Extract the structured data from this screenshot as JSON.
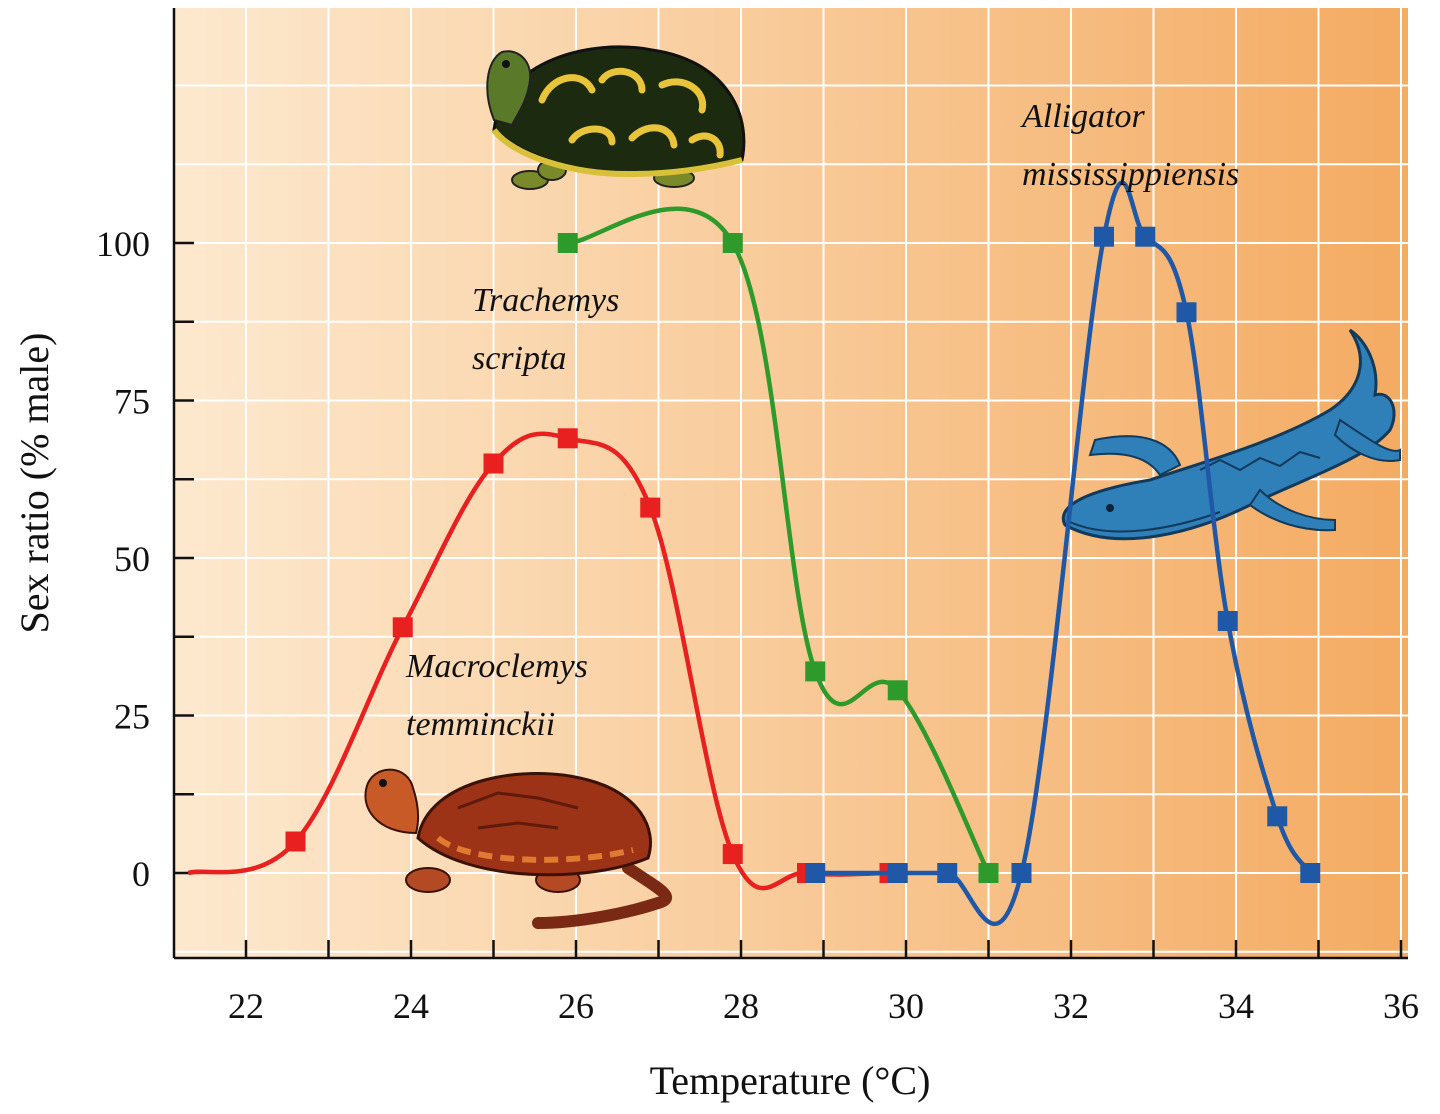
{
  "chart_data": {
    "type": "line",
    "xlabel": "Temperature (°C)",
    "ylabel": "Sex ratio (% male)",
    "xlim": [
      21,
      36
    ],
    "ylim": [
      -14,
      137
    ],
    "x_ticks": [
      22,
      24,
      26,
      28,
      30,
      32,
      34,
      36
    ],
    "y_ticks": [
      0,
      25,
      50,
      75,
      100
    ],
    "grid": true,
    "colors": {
      "background_left": "#fde9cf",
      "background_right": "#f4ab62",
      "grid": "#ffffff"
    },
    "series": [
      {
        "name": "Macroclemys temminckii",
        "label_lines": [
          "Macroclemys",
          "temminckii"
        ],
        "color": "#e8201f",
        "start_point": [
          21.3,
          0
        ],
        "points": [
          [
            22.6,
            5
          ],
          [
            23.9,
            39
          ],
          [
            25.0,
            65
          ],
          [
            25.9,
            69
          ],
          [
            26.9,
            58
          ],
          [
            27.9,
            3
          ],
          [
            28.8,
            0
          ],
          [
            29.8,
            0
          ]
        ],
        "icon": "snapping-turtle-icon"
      },
      {
        "name": "Trachemys scripta",
        "label_lines": [
          "Trachemys",
          "scripta"
        ],
        "color": "#2e9a2b",
        "points": [
          [
            25.9,
            100
          ],
          [
            27.9,
            100
          ],
          [
            28.9,
            32
          ],
          [
            29.9,
            29
          ],
          [
            31.0,
            0
          ]
        ],
        "icon": "slider-turtle-icon"
      },
      {
        "name": "Alligator mississippiensis",
        "label_lines": [
          "Alligator",
          "mississippiensis"
        ],
        "color": "#1f58a6",
        "points": [
          [
            28.9,
            0
          ],
          [
            29.9,
            0
          ],
          [
            30.5,
            0
          ],
          [
            31.4,
            0
          ],
          [
            32.4,
            101
          ],
          [
            32.9,
            101
          ],
          [
            33.4,
            89
          ],
          [
            33.9,
            40
          ],
          [
            34.5,
            9
          ],
          [
            34.9,
            0
          ]
        ],
        "icon": "alligator-icon"
      }
    ]
  }
}
